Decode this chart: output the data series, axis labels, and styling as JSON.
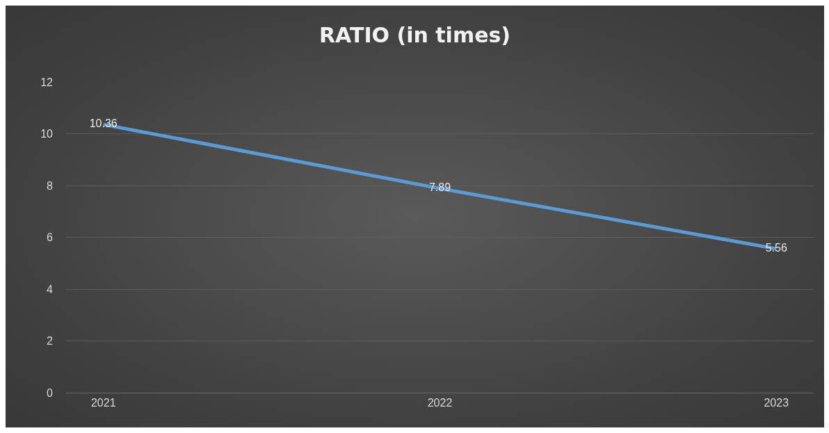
{
  "chart_data": {
    "type": "line",
    "title": "RATIO (in times)",
    "categories": [
      "2021",
      "2022",
      "2023"
    ],
    "series": [
      {
        "color": "#5b9bd5",
        "values": [
          10.36,
          7.89,
          5.56
        ]
      }
    ],
    "ylim": [
      0,
      12
    ],
    "yticks": [
      0,
      2,
      4,
      6,
      8,
      10,
      12
    ],
    "grid": "y",
    "data_labels": true,
    "line_style": "solid"
  }
}
